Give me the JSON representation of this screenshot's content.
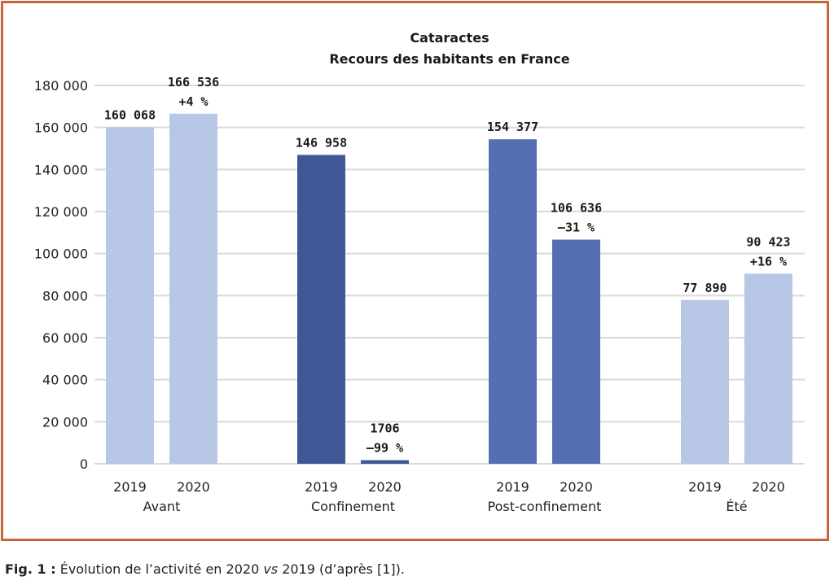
{
  "chart_data": {
    "type": "bar",
    "title": "Cataractes",
    "subtitle": "Recours des habitants en France",
    "xlabel": "",
    "ylabel": "",
    "ylim": [
      0,
      180000
    ],
    "yticks": [
      0,
      20000,
      40000,
      60000,
      80000,
      100000,
      120000,
      140000,
      160000,
      180000
    ],
    "ytick_labels": [
      "0",
      "20 000",
      "40 000",
      "60 000",
      "80 000",
      "100 000",
      "120 000",
      "140 000",
      "160 000",
      "180 000"
    ],
    "grid": true,
    "legend": "none",
    "groups": [
      {
        "name": "Avant",
        "bars": [
          {
            "year": "2019",
            "value": 160068,
            "label": "160 068",
            "change": "",
            "color": "#b8c7e6"
          },
          {
            "year": "2020",
            "value": 166536,
            "label": "166 536",
            "change": "+4 %",
            "color": "#b8c7e6"
          }
        ]
      },
      {
        "name": "Confinement",
        "bars": [
          {
            "year": "2019",
            "value": 146958,
            "label": "146 958",
            "change": "",
            "color": "#3f5795"
          },
          {
            "year": "2020",
            "value": 1706,
            "label": "1706",
            "change": "–99 %",
            "color": "#3f5795"
          }
        ]
      },
      {
        "name": "Post-confinement",
        "bars": [
          {
            "year": "2019",
            "value": 154377,
            "label": "154 377",
            "change": "",
            "color": "#5470b2"
          },
          {
            "year": "2020",
            "value": 106636,
            "label": "106 636",
            "change": "–31 %",
            "color": "#5470b2"
          }
        ]
      },
      {
        "name": "Été",
        "bars": [
          {
            "year": "2019",
            "value": 77890,
            "label": "77 890",
            "change": "",
            "color": "#b8c7e6"
          },
          {
            "year": "2020",
            "value": 90423,
            "label": "90 423",
            "change": "+16 %",
            "color": "#b8c7e6"
          }
        ]
      }
    ],
    "colors": {
      "frame": "#c8643a",
      "grid": "#d9d9d9"
    }
  },
  "caption": {
    "fig_label": "Fig. 1 :",
    "text": " Évolution de l’activité en 2020 ",
    "vs": "vs",
    "text_end": " 2019 (d’après [1])."
  }
}
